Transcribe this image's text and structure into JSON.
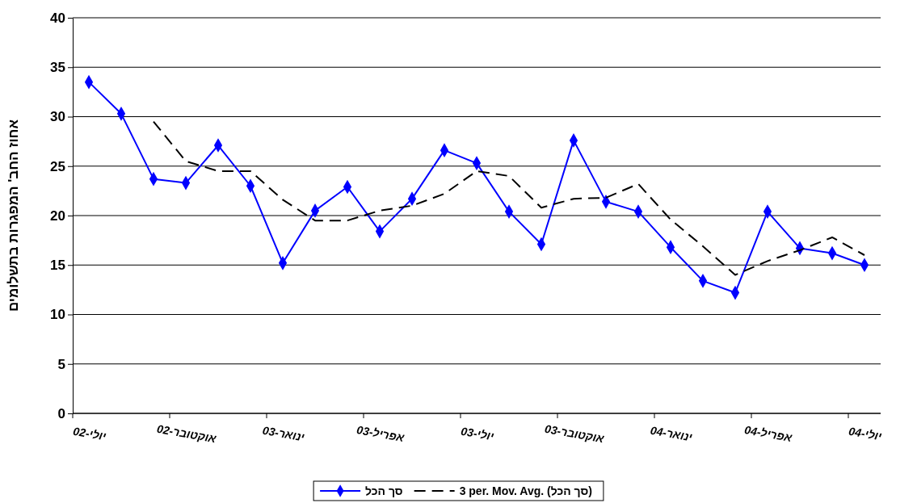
{
  "chart_data": {
    "type": "line",
    "ylabel": "אחוז החב' המפגרות בתשלומים",
    "categories": [
      "יולי-02",
      null,
      null,
      "אוקטובר-02",
      null,
      null,
      "ינואר-03",
      null,
      null,
      "אפריל-03",
      null,
      null,
      "יולי-03",
      null,
      null,
      "אוקטובר-03",
      null,
      null,
      "ינואר-04",
      null,
      null,
      "אפריל-04",
      null,
      null,
      "יולי-04"
    ],
    "series": [
      {
        "name": "סך הכל",
        "color": "#0000ff",
        "marker": "diamond",
        "line_style": "solid",
        "values": [
          33.5,
          30.3,
          23.7,
          23.3,
          27.1,
          23.0,
          15.2,
          20.5,
          22.9,
          18.4,
          21.7,
          26.6,
          25.3,
          20.4,
          17.1,
          27.6,
          21.4,
          20.4,
          16.8,
          13.4,
          12.2,
          20.4,
          16.7,
          16.2,
          15.0
        ]
      },
      {
        "name": "3 per. Mov. Avg. (סך הכל)",
        "color": "#000000",
        "marker": "none",
        "line_style": "dashed",
        "values": [
          null,
          null,
          29.5,
          25.5,
          24.5,
          24.5,
          21.6,
          19.5,
          19.5,
          20.5,
          21.0,
          22.2,
          24.5,
          24.0,
          20.8,
          21.7,
          21.8,
          23.2,
          19.6,
          16.9,
          14.0,
          15.4,
          16.5,
          17.8,
          16.0
        ]
      }
    ],
    "ylim": [
      0,
      40
    ],
    "yticks": [
      0,
      5,
      10,
      15,
      20,
      25,
      30,
      35,
      40
    ],
    "grid": "y",
    "legend": "bottom"
  }
}
